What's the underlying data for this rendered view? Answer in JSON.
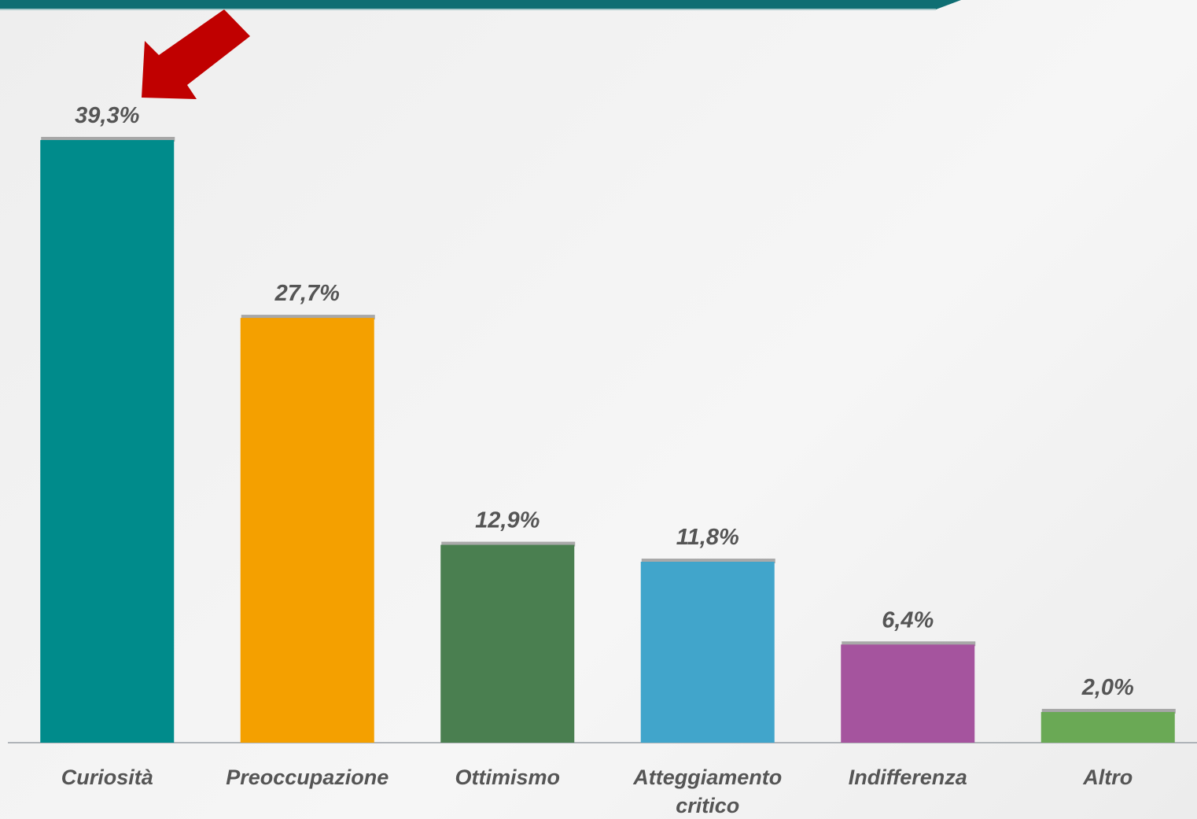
{
  "chart_data": {
    "type": "bar",
    "categories": [
      "Curiosità",
      "Preoccupazione",
      "Ottimismo",
      "Atteggiamento critico",
      "Indifferenza",
      "Altro"
    ],
    "values": [
      39.3,
      27.7,
      12.9,
      11.8,
      6.4,
      2.0
    ],
    "value_labels": [
      "39,3%",
      "27,7%",
      "12,9%",
      "11,8%",
      "6,4%",
      "2,0%"
    ],
    "colors": [
      "#008b8b",
      "#f4a000",
      "#4a7f50",
      "#41a5cb",
      "#a5549e",
      "#6aa955"
    ]
  }
}
